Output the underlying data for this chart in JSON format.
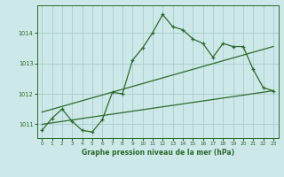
{
  "title": "Graphe pression niveau de la mer (hPa)",
  "bg_color": "#cce8e8",
  "grid_color": "#aacccc",
  "line_color": "#2d6a2d",
  "xlim": [
    -0.5,
    23.5
  ],
  "ylim": [
    1010.55,
    1014.9
  ],
  "yticks": [
    1011,
    1012,
    1013,
    1014
  ],
  "xticks": [
    0,
    1,
    2,
    3,
    4,
    5,
    6,
    7,
    8,
    9,
    10,
    11,
    12,
    13,
    14,
    15,
    16,
    17,
    18,
    19,
    20,
    21,
    22,
    23
  ],
  "series1": {
    "x": [
      0,
      1,
      2,
      3,
      4,
      5,
      6,
      7,
      8,
      9,
      10,
      11,
      12,
      13,
      14,
      15,
      16,
      17,
      18,
      19,
      20,
      21,
      22,
      23
    ],
    "y": [
      1010.8,
      1011.2,
      1011.5,
      1011.1,
      1010.8,
      1010.75,
      1011.15,
      1012.05,
      1012.0,
      1013.1,
      1013.5,
      1014.0,
      1014.6,
      1014.2,
      1014.1,
      1013.8,
      1013.65,
      1013.2,
      1013.65,
      1013.55,
      1013.55,
      1012.8,
      1012.2,
      1012.1
    ]
  },
  "series2": {
    "x": [
      0,
      23
    ],
    "y": [
      1011.0,
      1012.1
    ]
  },
  "series3": {
    "x": [
      0,
      23
    ],
    "y": [
      1011.4,
      1013.55
    ]
  }
}
